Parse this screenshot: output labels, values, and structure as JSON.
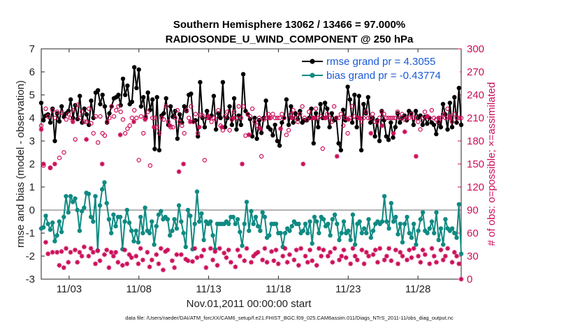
{
  "chart_data": {
    "type": "line",
    "title": "Southern Hemisphere 13062 / 13466 = 97.000%",
    "subtitle": "RADIOSONDE_U_WIND_COMPONENT @ 250 hPa",
    "xlabel": "Nov.01,2011 00:00:00 start",
    "ylabel": "rmse and bias (model - observation)",
    "ylabel_right": "# of obs: o=possible; ×=assimilated",
    "footer": "data file: /Users/raeder/DAI/ATM_forcXX/CAM6_setup/f.e21.FHIST_BGC.f09_025.CAM6assim.011/Diags_NTrS_2011-11/obs_diag_output.nc",
    "xlim": [
      1,
      31.1
    ],
    "ylim": [
      -3,
      7
    ],
    "ylim_right": [
      0,
      300
    ],
    "x_ticks": [
      3,
      8,
      13,
      18,
      23,
      28
    ],
    "x_tick_labels": [
      "11/03",
      "11/08",
      "11/13",
      "11/18",
      "11/23",
      "11/28"
    ],
    "y_ticks": [
      "-3",
      "-2",
      "-1",
      "0",
      "1",
      "2",
      "3",
      "4",
      "5",
      "6",
      "7"
    ],
    "y_ticks_right": [
      "0",
      "30",
      "60",
      "90",
      "120",
      "150",
      "180",
      "210",
      "240",
      "270",
      "300"
    ],
    "zero_line": 0,
    "legend_position": "top-right",
    "series": [
      {
        "name": "rmse grand pr = 4.3055",
        "color": "#000000",
        "marker": "dot",
        "values": [
          4.65,
          3.9,
          4.1,
          4.15,
          3.8,
          4.4,
          3.0,
          4.2,
          3.85,
          4.5,
          4.05,
          4.2,
          4.3,
          4.8,
          4.0,
          4.55,
          3.95,
          4.95,
          3.8,
          4.4,
          4.15,
          3.7,
          4.75,
          4.0,
          5.1,
          5.2,
          4.6,
          5.0,
          4.5,
          3.8,
          4.2,
          4.5,
          4.85,
          4.9,
          5.0,
          4.55,
          5.7,
          5.0,
          5.4,
          4.6,
          4.7,
          6.2,
          5.3,
          6.1,
          4.5,
          4.9,
          4.0,
          5.1,
          4.35,
          4.8,
          2.65,
          4.9,
          2.6,
          4.1,
          4.2,
          4.85,
          3.7,
          4.5,
          4.05,
          4.3,
          3.1,
          4.15,
          3.8,
          4.5,
          4.3,
          5.0,
          5.05,
          3.85,
          3.9,
          3.2,
          5.55,
          4.0,
          3.6,
          4.3,
          4.0,
          4.1,
          4.95,
          3.5,
          4.2,
          4.0,
          5.55,
          3.6,
          4.0,
          4.5,
          3.7,
          4.85,
          3.5,
          4.1,
          3.7,
          5.9,
          4.3,
          4.15,
          3.95,
          3.2,
          4.0,
          3.1,
          3.9,
          3.35,
          4.0,
          4.75,
          3.6,
          3.5,
          3.25,
          3.7,
          3.0,
          2.8,
          3.8,
          4.0,
          4.8,
          3.7,
          4.5,
          3.8,
          4.2,
          3.95,
          4.3,
          3.8,
          3.9,
          3.9,
          4.0,
          4.4,
          2.9,
          4.2,
          3.6,
          4.6,
          4.0,
          4.65,
          4.4,
          3.6,
          4.2,
          3.9,
          4.0,
          2.9,
          2.6,
          4.35,
          3.9,
          5.35,
          4.8,
          3.8,
          5.0,
          3.6,
          4.95,
          2.6,
          4.6,
          4.2,
          4.9,
          3.8,
          4.0,
          3.2,
          3.9,
          3.0,
          4.3,
          3.9,
          3.2,
          3.05,
          3.8,
          3.15,
          3.6,
          4.2,
          3.8,
          4.0,
          4.1,
          3.9,
          4.3,
          4.2,
          3.7,
          4.3,
          4.0,
          4.1,
          3.7,
          4.05,
          3.75,
          4.0,
          3.8,
          3.7,
          3.3,
          3.8,
          3.6,
          4.6,
          4.15,
          3.5,
          4.65,
          3.6,
          4.9,
          3.8,
          5.3,
          3.7
        ]
      },
      {
        "name": "bias grand pr = -0.43774",
        "color": "#0f8a82",
        "marker": "dot",
        "values": [
          -0.8,
          -0.75,
          -0.25,
          -0.6,
          -0.85,
          -0.55,
          -1.35,
          -1.1,
          -0.5,
          -0.95,
          -0.3,
          0.6,
          -0.1,
          0.6,
          0.35,
          0.5,
          0.0,
          -0.9,
          -0.05,
          0.1,
          0.75,
          0.7,
          -0.3,
          -0.5,
          0.6,
          -1.75,
          0.2,
          0.9,
          1.2,
          0.3,
          -0.4,
          -1.0,
          -0.2,
          -0.7,
          -0.3,
          -0.3,
          -1.7,
          -0.5,
          0.0,
          -0.55,
          -0.9,
          -1.35,
          -0.9,
          -1.4,
          -0.3,
          -1.0,
          0.1,
          -0.9,
          -1.0,
          -0.5,
          -1.5,
          -0.7,
          -0.2,
          -0.05,
          -0.4,
          -0.3,
          -0.4,
          -1.1,
          -0.9,
          -0.4,
          -0.8,
          0.2,
          -0.5,
          -1.0,
          -1.6,
          0.0,
          -0.25,
          -1.7,
          -0.6,
          0.8,
          -0.5,
          -0.15,
          -1.3,
          -0.5,
          -0.6,
          -0.5,
          -1.1,
          -1.7,
          -0.6,
          -0.6,
          -0.6,
          -0.6,
          -0.5,
          -0.6,
          -0.3,
          -0.3,
          -0.6,
          -0.4,
          -0.95,
          -1.55,
          -0.6,
          0.35,
          -0.9,
          -0.05,
          -0.6,
          -0.3,
          -0.7,
          -0.9,
          -0.1,
          -0.3,
          -1.2,
          -1.1,
          -0.6,
          -0.6,
          -0.6,
          -1.0,
          -1.0,
          -1.6,
          -1.0,
          -0.8,
          -0.9,
          -0.7,
          -0.5,
          -0.6,
          -0.6,
          -1.0,
          -0.9,
          -0.6,
          -1.0,
          -0.5,
          -1.45,
          -0.3,
          -0.5,
          -1.0,
          -0.3,
          -0.4,
          -0.7,
          -0.6,
          -1.1,
          -0.4,
          -0.2,
          -0.6,
          -1.3,
          -1.0,
          -0.5,
          -1.0,
          -0.9,
          -1.3,
          -0.2,
          -1.5,
          -0.6,
          -0.5,
          -1.0,
          -0.8,
          -1.0,
          -0.4,
          -1.2,
          -0.9,
          -0.6,
          -0.5,
          -0.6,
          -0.5,
          0.6,
          -0.5,
          -0.8,
          0.3,
          -0.5,
          -0.3,
          -1.05,
          -0.6,
          -1.4,
          -0.6,
          -0.3,
          -1.0,
          -1.2,
          -0.6,
          -1.5,
          -0.9,
          -0.4,
          -0.1,
          -0.9,
          -1.0,
          -0.8,
          -0.5,
          -1.0,
          -0.1,
          -1.3,
          -0.8,
          -1.5,
          -0.4,
          -0.8,
          -0.9,
          -0.8,
          -1.0,
          -1.2,
          0.25,
          -1.9
        ]
      },
      {
        "name": "possible obs",
        "color": "#cc0e5a",
        "marker": "circle",
        "axis": "right",
        "values": [
          200,
          148,
          222,
          212,
          145,
          220,
          210,
          218,
          158,
          217,
          165,
          208,
          215,
          210,
          220,
          182,
          227,
          210,
          218,
          205,
          205,
          222,
          203,
          190,
          212,
          178,
          212,
          190,
          187,
          205,
          210,
          225,
          212,
          220,
          225,
          218,
          208,
          190,
          196,
          200,
          210,
          220,
          210,
          155,
          212,
          190,
          212,
          218,
          148,
          210,
          210,
          198,
          190,
          210,
          208,
          225,
          205,
          198,
          198,
          210,
          220,
          205,
          200,
          190,
          220,
          210,
          225,
          205,
          215,
          190,
          214,
          213,
          155,
          210,
          210,
          205,
          210,
          208,
          220,
          200,
          194,
          212,
          218,
          194,
          208,
          218,
          210,
          225,
          210,
          225,
          187,
          215,
          212,
          222,
          205,
          200,
          210,
          160,
          208,
          210,
          215,
          210,
          215,
          210,
          210,
          210,
          215,
          210,
          188,
          194,
          215,
          220,
          210,
          205,
          215,
          225,
          210,
          208,
          218,
          210,
          210,
          222,
          210,
          212,
          170,
          210,
          215,
          210,
          205,
          225,
          210,
          210,
          215,
          200,
          210,
          190,
          210,
          225,
          212,
          210,
          210,
          205,
          210,
          218,
          210,
          210,
          215,
          205,
          205,
          210,
          218,
          215,
          210,
          210,
          210,
          210,
          210,
          218,
          210,
          215,
          208,
          210,
          210,
          215,
          210,
          210,
          205,
          195,
          210,
          218,
          212,
          210,
          220,
          210,
          208,
          205,
          210,
          215,
          210,
          222,
          212,
          205,
          215,
          210,
          210,
          210
        ]
      },
      {
        "name": "assimilated obs",
        "color": "#cc0e5a",
        "marker": "asterisk",
        "axis": "right",
        "values": [
          195,
          150,
          48,
          33,
          145,
          35,
          150,
          35,
          18,
          36,
          15,
          40,
          22,
          35,
          205,
          38,
          22,
          35,
          30,
          42,
          182,
          30,
          40,
          35,
          20,
          37,
          24,
          150,
          32,
          38,
          15,
          35,
          30,
          35,
          22,
          188,
          18,
          38,
          20,
          32,
          28,
          205,
          30,
          20,
          40,
          25,
          208,
          35,
          16,
          25,
          198,
          32,
          20,
          40,
          12,
          36,
          38,
          200,
          24,
          15,
          32,
          140,
          32,
          150,
          26,
          24,
          205,
          23,
          40,
          28,
          198,
          30,
          38,
          15,
          212,
          40,
          25,
          36,
          18,
          40,
          198,
          34,
          28,
          38,
          22,
          210,
          16,
          38,
          30,
          150,
          24,
          40,
          188,
          22,
          30,
          33,
          35,
          196,
          25,
          40,
          22,
          210,
          36,
          24,
          38,
          20,
          196,
          30,
          40,
          22,
          32,
          210,
          25,
          38,
          18,
          40,
          150,
          30,
          22,
          38,
          24,
          210,
          18,
          40,
          30,
          38,
          210,
          30,
          35,
          22,
          40,
          160,
          25,
          30,
          38,
          28,
          208,
          20,
          40,
          30,
          25,
          210,
          38,
          20,
          35,
          30,
          190,
          32,
          38,
          22,
          40,
          200,
          25,
          30,
          40,
          24,
          190,
          38,
          20,
          35,
          30,
          192,
          25,
          38,
          28,
          40,
          160,
          30,
          22,
          38,
          32,
          212,
          20,
          40,
          30,
          22,
          210,
          38,
          25,
          30,
          40,
          210,
          22,
          35,
          30,
          20,
          0
        ]
      }
    ]
  }
}
